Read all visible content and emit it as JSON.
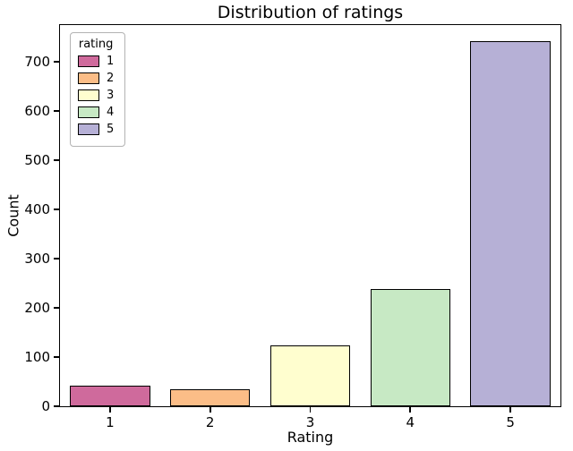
{
  "chart_data": {
    "type": "bar",
    "title": "Distribution of ratings",
    "xlabel": "Rating",
    "ylabel": "Count",
    "categories": [
      "1",
      "2",
      "3",
      "4",
      "5"
    ],
    "values": [
      42,
      34,
      123,
      238,
      742
    ],
    "colors": [
      "#cf6a9c",
      "#fbbd87",
      "#fffecf",
      "#c7e9c4",
      "#b6b0d6"
    ],
    "bar_edge_color": "#000000",
    "bar_width_fraction": 0.8,
    "ylim": [
      0,
      775
    ],
    "y_ticks": [
      0,
      100,
      200,
      300,
      400,
      500,
      600,
      700
    ],
    "grid": false,
    "legend_title": "rating",
    "legend_labels": [
      "1",
      "2",
      "3",
      "4",
      "5"
    ],
    "legend_position": "upper left"
  }
}
